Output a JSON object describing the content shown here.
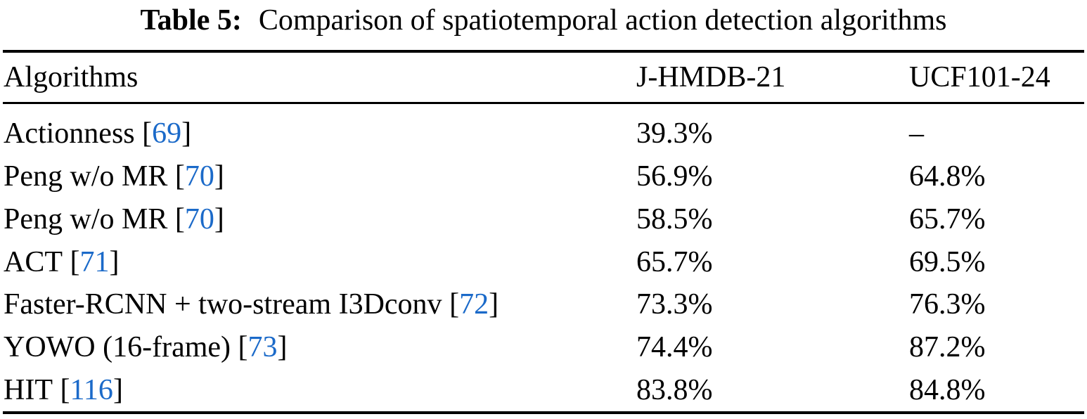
{
  "caption": {
    "label": "Table 5:",
    "text": "Comparison of spatiotemporal action detection algorithms"
  },
  "table": {
    "columns": [
      "Algorithms",
      "J-HMDB-21",
      "UCF101-24"
    ],
    "rows": [
      {
        "algorithm": "Actionness",
        "citation": "69",
        "jhmdb": "39.3%",
        "ucf": "–"
      },
      {
        "algorithm": "Peng w/o MR",
        "citation": "70",
        "jhmdb": "56.9%",
        "ucf": "64.8%"
      },
      {
        "algorithm": "Peng w/o MR",
        "citation": "70",
        "jhmdb": "58.5%",
        "ucf": "65.7%"
      },
      {
        "algorithm": "ACT",
        "citation": "71",
        "jhmdb": "65.7%",
        "ucf": "69.5%"
      },
      {
        "algorithm": "Faster-RCNN + two-stream I3Dconv",
        "citation": "72",
        "jhmdb": "73.3%",
        "ucf": "76.3%"
      },
      {
        "algorithm": "YOWO (16-frame)",
        "citation": "73",
        "jhmdb": "74.4%",
        "ucf": "87.2%"
      },
      {
        "algorithm": "HIT",
        "citation": "116",
        "jhmdb": "83.8%",
        "ucf": "84.8%"
      }
    ]
  },
  "colors": {
    "text": "#000000",
    "citation_link": "#1b6ac9",
    "background": "#ffffff"
  }
}
